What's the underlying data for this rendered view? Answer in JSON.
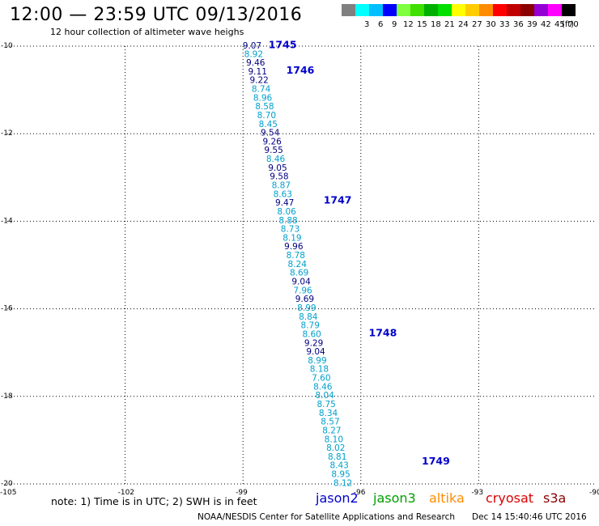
{
  "header": {
    "title": "12:00 — 23:59 UTC 09/13/2016",
    "subtitle": "12 hour collection of altimeter wave heighs"
  },
  "colorbar": {
    "unit": "(ft)",
    "bins": [
      {
        "label": "",
        "color": "#808080"
      },
      {
        "label": "3",
        "color": "#00ffff"
      },
      {
        "label": "6",
        "color": "#00bfff"
      },
      {
        "label": "9",
        "color": "#0000ff"
      },
      {
        "label": "12",
        "color": "#7fff3f"
      },
      {
        "label": "15",
        "color": "#3fdf00"
      },
      {
        "label": "18",
        "color": "#00b000"
      },
      {
        "label": "21",
        "color": "#00e000"
      },
      {
        "label": "24",
        "color": "#ffff00"
      },
      {
        "label": "27",
        "color": "#ffcc00"
      },
      {
        "label": "30",
        "color": "#ff8c00"
      },
      {
        "label": "33",
        "color": "#ff0000"
      },
      {
        "label": "36",
        "color": "#c00000"
      },
      {
        "label": "39",
        "color": "#8b0000"
      },
      {
        "label": "42",
        "color": "#9400d3"
      },
      {
        "label": "45",
        "color": "#ff00ff"
      },
      {
        "label": "70",
        "color": "#000000"
      }
    ]
  },
  "map": {
    "lon_range": [
      -105,
      -90
    ],
    "lat_range": [
      -20,
      -10
    ],
    "lon_ticks": [
      {
        "value": -105,
        "label": "-105"
      },
      {
        "value": -102,
        "label": "-102"
      },
      {
        "value": -99,
        "label": "-99"
      },
      {
        "value": -96,
        "label": "-96"
      },
      {
        "value": -93,
        "label": "-93"
      },
      {
        "value": -90,
        "label": "-90"
      }
    ],
    "lat_ticks": [
      {
        "value": -10,
        "label": "-10"
      },
      {
        "value": -12,
        "label": "-12"
      },
      {
        "value": -14,
        "label": "-14"
      },
      {
        "value": -16,
        "label": "-16"
      },
      {
        "value": -18,
        "label": "-18"
      },
      {
        "value": -20,
        "label": "-20"
      }
    ],
    "colors": {
      "dark": "#000080",
      "light": "#00a0cc",
      "pass": "#0000cc"
    },
    "pass_labels": [
      {
        "text": "1745",
        "lon": -98.35,
        "lat": -9.97
      },
      {
        "text": "1746",
        "lon": -97.9,
        "lat": -10.55
      },
      {
        "text": "1747",
        "lon": -96.95,
        "lat": -13.52
      },
      {
        "text": "1748",
        "lon": -95.8,
        "lat": -16.55
      },
      {
        "text": "1749",
        "lon": -94.45,
        "lat": -19.48
      }
    ],
    "readings": [
      {
        "text": "9.07",
        "lon": -99.01,
        "lat": -9.98,
        "tone": "dark"
      },
      {
        "text": "8.92",
        "lon": -98.97,
        "lat": -10.18,
        "tone": "light"
      },
      {
        "text": "9.46",
        "lon": -98.92,
        "lat": -10.37,
        "tone": "dark"
      },
      {
        "text": "9.11",
        "lon": -98.87,
        "lat": -10.57,
        "tone": "dark"
      },
      {
        "text": "9.22",
        "lon": -98.83,
        "lat": -10.77,
        "tone": "dark"
      },
      {
        "text": "8.74",
        "lon": -98.78,
        "lat": -10.97,
        "tone": "light"
      },
      {
        "text": "8.96",
        "lon": -98.74,
        "lat": -11.17,
        "tone": "light"
      },
      {
        "text": "8.58",
        "lon": -98.69,
        "lat": -11.37,
        "tone": "light"
      },
      {
        "text": "8.70",
        "lon": -98.64,
        "lat": -11.57,
        "tone": "light"
      },
      {
        "text": "8.45",
        "lon": -98.6,
        "lat": -11.77,
        "tone": "light"
      },
      {
        "text": "9.54",
        "lon": -98.55,
        "lat": -11.97,
        "tone": "dark"
      },
      {
        "text": "9.26",
        "lon": -98.5,
        "lat": -12.17,
        "tone": "dark"
      },
      {
        "text": "9.55",
        "lon": -98.46,
        "lat": -12.37,
        "tone": "dark"
      },
      {
        "text": "8.46",
        "lon": -98.41,
        "lat": -12.57,
        "tone": "light"
      },
      {
        "text": "9.05",
        "lon": -98.36,
        "lat": -12.77,
        "tone": "dark"
      },
      {
        "text": "9.58",
        "lon": -98.32,
        "lat": -12.97,
        "tone": "dark"
      },
      {
        "text": "8.87",
        "lon": -98.27,
        "lat": -13.17,
        "tone": "light"
      },
      {
        "text": "8.63",
        "lon": -98.23,
        "lat": -13.37,
        "tone": "light"
      },
      {
        "text": "9.47",
        "lon": -98.18,
        "lat": -13.57,
        "tone": "dark"
      },
      {
        "text": "8.06",
        "lon": -98.13,
        "lat": -13.77,
        "tone": "light"
      },
      {
        "text": "8.88",
        "lon": -98.09,
        "lat": -13.97,
        "tone": "light"
      },
      {
        "text": "8.73",
        "lon": -98.04,
        "lat": -14.17,
        "tone": "light"
      },
      {
        "text": "8.19",
        "lon": -97.99,
        "lat": -14.37,
        "tone": "light"
      },
      {
        "text": "9.96",
        "lon": -97.95,
        "lat": -14.57,
        "tone": "dark"
      },
      {
        "text": "8.78",
        "lon": -97.9,
        "lat": -14.77,
        "tone": "light"
      },
      {
        "text": "8.24",
        "lon": -97.86,
        "lat": -14.97,
        "tone": "light"
      },
      {
        "text": "8.69",
        "lon": -97.81,
        "lat": -15.17,
        "tone": "light"
      },
      {
        "text": "9.04",
        "lon": -97.76,
        "lat": -15.37,
        "tone": "dark"
      },
      {
        "text": "7.96",
        "lon": -97.72,
        "lat": -15.57,
        "tone": "light"
      },
      {
        "text": "9.69",
        "lon": -97.67,
        "lat": -15.77,
        "tone": "dark"
      },
      {
        "text": "8.99",
        "lon": -97.62,
        "lat": -15.97,
        "tone": "light"
      },
      {
        "text": "8.84",
        "lon": -97.58,
        "lat": -16.17,
        "tone": "light"
      },
      {
        "text": "8.79",
        "lon": -97.53,
        "lat": -16.37,
        "tone": "light"
      },
      {
        "text": "8.60",
        "lon": -97.49,
        "lat": -16.57,
        "tone": "light"
      },
      {
        "text": "9.29",
        "lon": -97.44,
        "lat": -16.77,
        "tone": "dark"
      },
      {
        "text": "9.04",
        "lon": -97.39,
        "lat": -16.97,
        "tone": "dark"
      },
      {
        "text": "8.99",
        "lon": -97.35,
        "lat": -17.17,
        "tone": "light"
      },
      {
        "text": "8.18",
        "lon": -97.3,
        "lat": -17.37,
        "tone": "light"
      },
      {
        "text": "7.60",
        "lon": -97.25,
        "lat": -17.57,
        "tone": "light"
      },
      {
        "text": "8.46",
        "lon": -97.21,
        "lat": -17.77,
        "tone": "light"
      },
      {
        "text": "8.04",
        "lon": -97.16,
        "lat": -17.97,
        "tone": "light"
      },
      {
        "text": "8.75",
        "lon": -97.12,
        "lat": -18.17,
        "tone": "light"
      },
      {
        "text": "8.34",
        "lon": -97.07,
        "lat": -18.37,
        "tone": "light"
      },
      {
        "text": "8.57",
        "lon": -97.02,
        "lat": -18.57,
        "tone": "light"
      },
      {
        "text": "8.27",
        "lon": -96.98,
        "lat": -18.77,
        "tone": "light"
      },
      {
        "text": "8.10",
        "lon": -96.93,
        "lat": -18.97,
        "tone": "light"
      },
      {
        "text": "8.02",
        "lon": -96.88,
        "lat": -19.17,
        "tone": "light"
      },
      {
        "text": "8.81",
        "lon": -96.84,
        "lat": -19.37,
        "tone": "light"
      },
      {
        "text": "8.43",
        "lon": -96.79,
        "lat": -19.57,
        "tone": "light"
      },
      {
        "text": "8.95",
        "lon": -96.75,
        "lat": -19.77,
        "tone": "light"
      },
      {
        "text": "8.12",
        "lon": -96.7,
        "lat": -19.97,
        "tone": "light"
      }
    ]
  },
  "footer": {
    "note": "note: 1) Time is in UTC; 2) SWH is in feet",
    "missions": [
      {
        "label": "jason2",
        "color": "#0000cc"
      },
      {
        "label": "jason3",
        "color": "#00a000"
      },
      {
        "label": "altika",
        "color": "#ff8c00"
      },
      {
        "label": "cryosat",
        "color": "#dd0000"
      },
      {
        "label": "s3a",
        "color": "#8b0000"
      }
    ],
    "credit": "NOAA/NESDIS Center for Satellite Applications and Research",
    "timestamp": "Dec 14 15:40:46 UTC 2016"
  }
}
